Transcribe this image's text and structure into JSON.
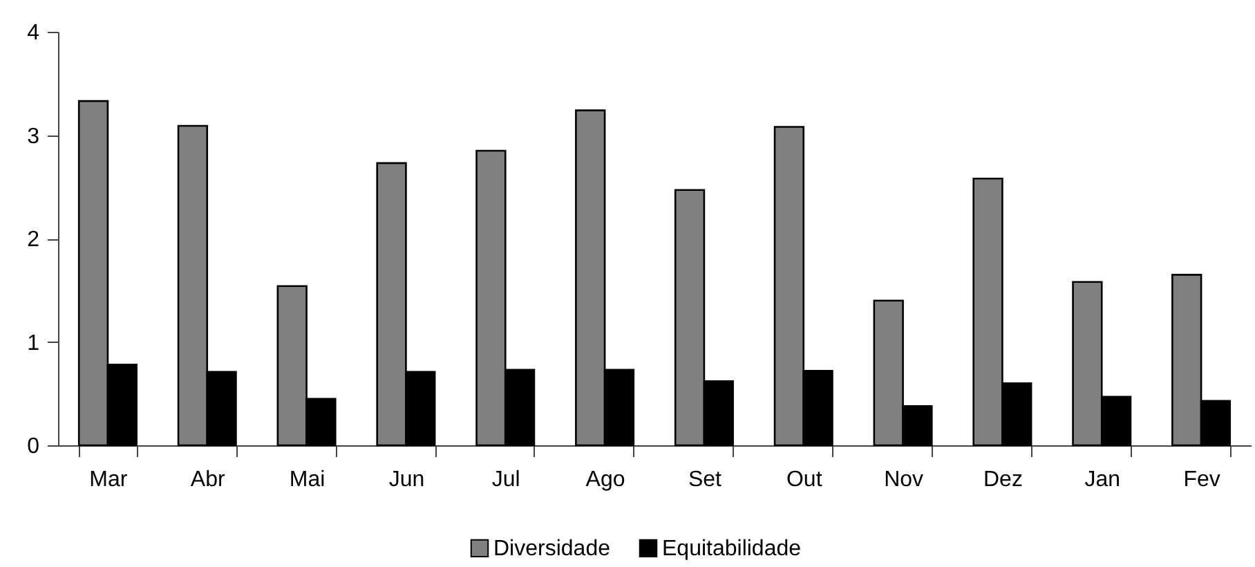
{
  "chart_data": {
    "type": "bar",
    "categories": [
      "Mar",
      "Abr",
      "Mai",
      "Jun",
      "Jul",
      "Ago",
      "Set",
      "Out",
      "Nov",
      "Dez",
      "Jan",
      "Fev"
    ],
    "series": [
      {
        "name": "Diversidade",
        "color": "#808080",
        "values": [
          3.33,
          3.09,
          1.54,
          2.73,
          2.85,
          3.24,
          2.47,
          3.08,
          1.4,
          2.58,
          1.58,
          1.65
        ]
      },
      {
        "name": "Equitabilidade",
        "color": "#000000",
        "values": [
          0.78,
          0.71,
          0.45,
          0.71,
          0.73,
          0.73,
          0.62,
          0.72,
          0.38,
          0.6,
          0.47,
          0.43
        ]
      }
    ],
    "ylim": [
      0,
      4
    ],
    "yticks": [
      0,
      1,
      2,
      3,
      4
    ],
    "grid": false,
    "legend": "bottom"
  }
}
